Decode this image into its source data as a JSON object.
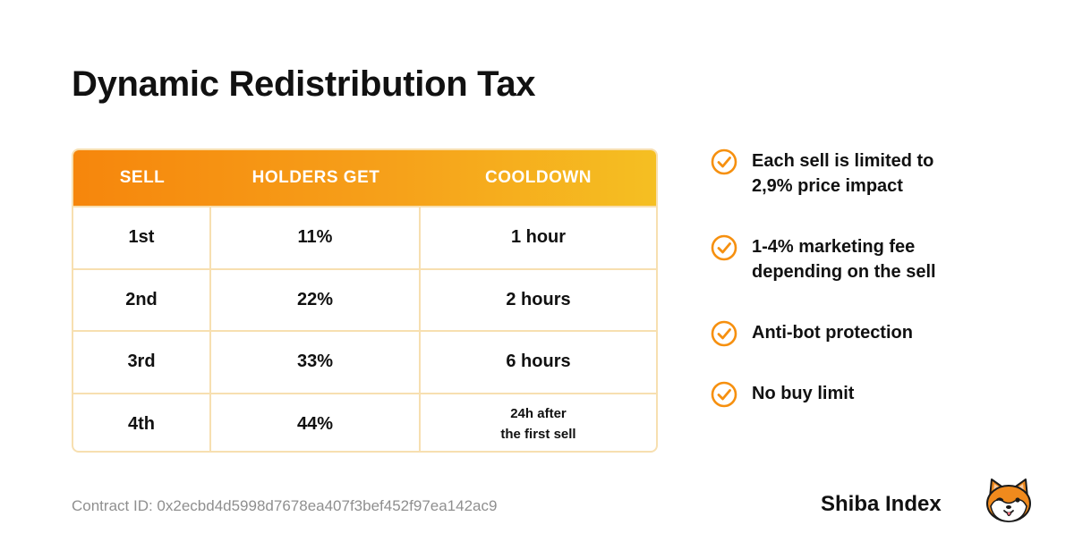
{
  "title": "Dynamic Redistribution Tax",
  "table": {
    "headers": [
      "SELL",
      "HOLDERS GET",
      "COOLDOWN"
    ],
    "rows": [
      {
        "sell": "1st",
        "holders_get": "11%",
        "cooldown": "1 hour"
      },
      {
        "sell": "2nd",
        "holders_get": "22%",
        "cooldown": "2 hours"
      },
      {
        "sell": "3rd",
        "holders_get": "33%",
        "cooldown": "6 hours"
      },
      {
        "sell": "4th",
        "holders_get": "44%",
        "cooldown": "24h after\nthe first sell"
      }
    ]
  },
  "features": [
    {
      "text": "Each sell is limited to\n2,9% price impact",
      "icon": "check-circle-icon"
    },
    {
      "text": "1-4% marketing fee\ndepending on the sell",
      "icon": "check-circle-icon"
    },
    {
      "text": "Anti-bot protection",
      "icon": "check-circle-icon"
    },
    {
      "text": "No buy limit",
      "icon": "check-circle-icon"
    }
  ],
  "contract": "Contract ID: 0x2ecbd4d5998d7678ea407f3bef452f97ea142ac9",
  "brand": "Shiba Index",
  "colors": {
    "accent_orange": "#f6860c",
    "accent_yellow": "#f5bf22",
    "table_border": "#f7dfb0",
    "muted_text": "#8f8f8f"
  }
}
